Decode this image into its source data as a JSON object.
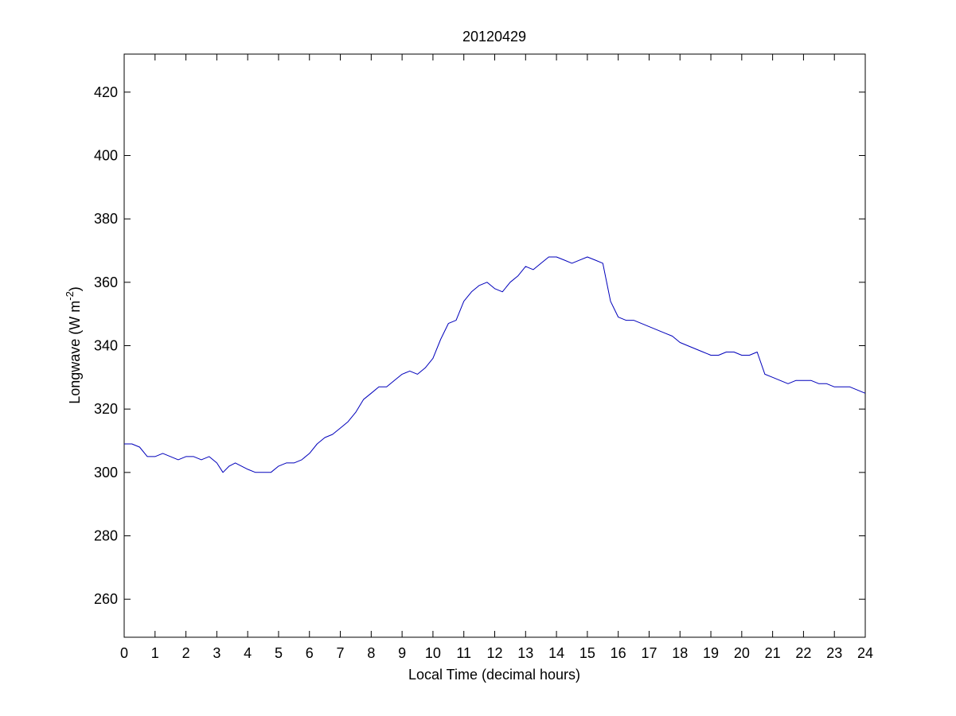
{
  "chart_data": {
    "type": "line",
    "title": "20120429",
    "xlabel": "Local Time (decimal hours)",
    "ylabel": {
      "prefix": "Longwave (W m",
      "superscript": "-2",
      "suffix": ")"
    },
    "xlim": [
      0,
      24
    ],
    "ylim": [
      248,
      432
    ],
    "xticks": [
      0,
      1,
      2,
      3,
      4,
      5,
      6,
      7,
      8,
      9,
      10,
      11,
      12,
      13,
      14,
      15,
      16,
      17,
      18,
      19,
      20,
      21,
      22,
      23,
      24
    ],
    "xtick_labels": [
      "0",
      "1",
      "2",
      "3",
      "4",
      "5",
      "6",
      "7",
      "8",
      "9",
      "10",
      "11",
      "12",
      "13",
      "14",
      "15",
      "16",
      "17",
      "18",
      "19",
      "20",
      "21",
      "22",
      "23",
      "24"
    ],
    "yticks": [
      260,
      280,
      300,
      320,
      340,
      360,
      380,
      400,
      420
    ],
    "ytick_labels": [
      "260",
      "280",
      "300",
      "320",
      "340",
      "360",
      "380",
      "400",
      "420"
    ],
    "grid": false,
    "series": [
      {
        "color": "#0000bb",
        "x": [
          0,
          0.25,
          0.5,
          0.75,
          1.0,
          1.25,
          1.5,
          1.75,
          2.0,
          2.25,
          2.5,
          2.75,
          3.0,
          3.2,
          3.4,
          3.6,
          3.8,
          4.0,
          4.25,
          4.5,
          4.75,
          5.0,
          5.25,
          5.5,
          5.75,
          6.0,
          6.25,
          6.5,
          6.75,
          7.0,
          7.25,
          7.5,
          7.75,
          8.0,
          8.25,
          8.5,
          8.75,
          9.0,
          9.25,
          9.5,
          9.75,
          10.0,
          10.25,
          10.5,
          10.75,
          11.0,
          11.25,
          11.5,
          11.75,
          12.0,
          12.25,
          12.5,
          12.75,
          13.0,
          13.25,
          13.5,
          13.75,
          14.0,
          14.25,
          14.5,
          14.75,
          15.0,
          15.25,
          15.5,
          15.75,
          16.0,
          16.25,
          16.5,
          16.75,
          17.0,
          17.25,
          17.5,
          17.75,
          18.0,
          18.25,
          18.5,
          18.75,
          19.0,
          19.25,
          19.5,
          19.75,
          20.0,
          20.25,
          20.5,
          20.75,
          21.0,
          21.25,
          21.5,
          21.75,
          22.0,
          22.25,
          22.5,
          22.75,
          23.0,
          23.25,
          23.5,
          23.75,
          24.0
        ],
        "y": [
          309,
          309,
          308,
          305,
          305,
          306,
          305,
          304,
          305,
          305,
          304,
          305,
          303,
          300,
          302,
          303,
          302,
          301,
          300,
          300,
          300,
          302,
          303,
          303,
          304,
          306,
          309,
          311,
          312,
          314,
          316,
          319,
          323,
          325,
          327,
          327,
          329,
          331,
          332,
          331,
          333,
          336,
          342,
          347,
          348,
          354,
          357,
          359,
          360,
          358,
          357,
          360,
          362,
          365,
          364,
          366,
          368,
          368,
          367,
          366,
          367,
          368,
          367,
          366,
          354,
          349,
          348,
          348,
          347,
          346,
          345,
          344,
          343,
          341,
          340,
          339,
          338,
          337,
          337,
          338,
          338,
          337,
          337,
          338,
          331,
          330,
          329,
          328,
          329,
          329,
          329,
          328,
          328,
          327,
          327,
          327,
          326,
          325
        ]
      }
    ]
  }
}
